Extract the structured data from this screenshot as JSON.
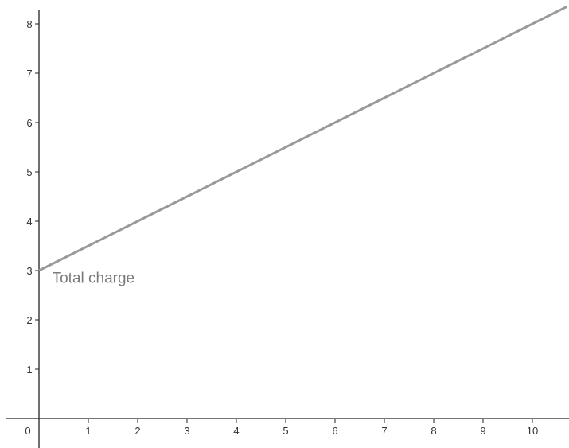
{
  "chart_data": {
    "type": "line",
    "title": "",
    "xlabel": "",
    "ylabel": "",
    "xlim": [
      0,
      10.7
    ],
    "ylim": [
      0,
      8.3
    ],
    "grid": false,
    "origin_label": "0",
    "x_ticks": [
      "1",
      "2",
      "3",
      "4",
      "5",
      "6",
      "7",
      "8",
      "9",
      "10"
    ],
    "y_ticks": [
      "1",
      "2",
      "3",
      "4",
      "5",
      "6",
      "7",
      "8"
    ],
    "series": [
      {
        "label": "Total charge",
        "color": "#999999",
        "x": [
          0,
          10.7
        ],
        "y": [
          3,
          8.35
        ]
      }
    ],
    "annotations": [
      {
        "text": "Total charge",
        "x": 0.3,
        "y": 2.85
      }
    ]
  }
}
